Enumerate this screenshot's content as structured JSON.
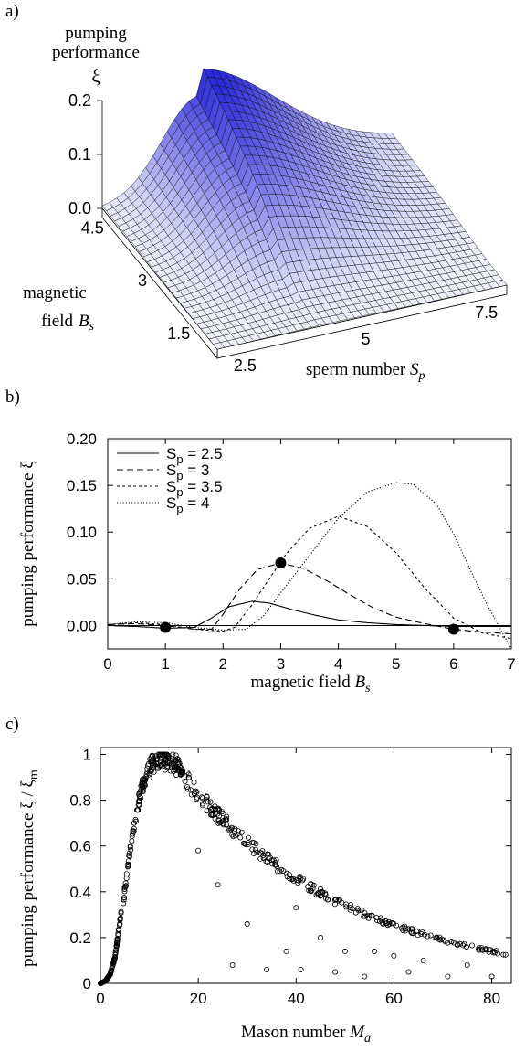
{
  "panel_labels": {
    "a": "a)",
    "b": "b)",
    "c": "c)"
  },
  "chart_data": [
    {
      "id": "a",
      "type": "surface",
      "zlabel_line1": "pumping",
      "zlabel_line2": "performance",
      "zlabel_symbol": "ξ",
      "zticks": [
        "0.0",
        "0.1",
        "0.2"
      ],
      "zlim": [
        0.0,
        0.2
      ],
      "xlabel": "sperm number",
      "xlabel_symbol": "S",
      "xlabel_sub": "p",
      "xticks": [
        "2.5",
        "5",
        "7.5"
      ],
      "ylabel_line1": "magnetic",
      "ylabel_line2": "field",
      "ylabel_symbol": "B",
      "ylabel_sub": "s",
      "yticks": [
        "1.5",
        "3",
        "4.5"
      ],
      "surface_peak": {
        "sperm_number": 4.0,
        "magnetic_field": 5.0,
        "xi": 0.2
      },
      "color": "#2b2bdc"
    },
    {
      "id": "b",
      "type": "line",
      "xlabel": "magnetic field",
      "xlabel_symbol": "B",
      "xlabel_sub": "s",
      "ylabel": "pumping performance  ξ",
      "xlim": [
        0,
        7
      ],
      "ylim": [
        -0.025,
        0.2
      ],
      "xticks": [
        "0",
        "1",
        "2",
        "3",
        "4",
        "5",
        "6",
        "7"
      ],
      "yticks": [
        "0.00",
        "0.05",
        "0.10",
        "0.15",
        "0.20"
      ],
      "legend_position": "top-left",
      "series": [
        {
          "name": "S",
          "sub": "p",
          "suffix": " = 2.5",
          "dash": "",
          "x": [
            0,
            0.5,
            1,
            1.5,
            1.8,
            2.1,
            2.5,
            2.8,
            3.2,
            3.6,
            4,
            4.5,
            5,
            5.5,
            6,
            6.5,
            7
          ],
          "y": [
            0.0,
            -0.001,
            -0.003,
            -0.002,
            0.008,
            0.02,
            0.026,
            0.024,
            0.017,
            0.011,
            0.006,
            0.003,
            0.001,
            0.0,
            -0.001,
            -0.001,
            -0.001
          ]
        },
        {
          "name": "S",
          "sub": "p",
          "suffix": " = 3",
          "dash": "7,4",
          "x": [
            0,
            0.5,
            1,
            1.5,
            1.8,
            2.0,
            2.3,
            2.6,
            3.0,
            3.4,
            3.8,
            4.2,
            4.6,
            5,
            5.5,
            6,
            6.5,
            7
          ],
          "y": [
            0.001,
            0.002,
            0.0,
            -0.004,
            -0.004,
            0.012,
            0.04,
            0.06,
            0.067,
            0.061,
            0.048,
            0.033,
            0.019,
            0.009,
            0.002,
            -0.004,
            -0.007,
            -0.009
          ]
        },
        {
          "name": "S",
          "sub": "p",
          "suffix": " = 3.5",
          "dash": "3,3",
          "x": [
            0,
            0.5,
            1,
            1.5,
            2,
            2.2,
            2.5,
            2.8,
            3.1,
            3.5,
            4,
            4.5,
            5,
            5.5,
            6,
            6.5,
            7
          ],
          "y": [
            0.001,
            0.003,
            0.001,
            -0.004,
            -0.006,
            -0.002,
            0.022,
            0.05,
            0.077,
            0.104,
            0.117,
            0.106,
            0.078,
            0.04,
            0.008,
            -0.008,
            -0.014
          ]
        },
        {
          "name": "S",
          "sub": "p",
          "suffix": " = 4",
          "dash": "1.2,2",
          "x": [
            0,
            0.5,
            1,
            1.5,
            2,
            2.4,
            2.7,
            3,
            3.5,
            4,
            4.5,
            5,
            5.3,
            5.7,
            6,
            6.3,
            6.6,
            7
          ],
          "y": [
            0.001,
            0.004,
            0.003,
            -0.002,
            -0.005,
            -0.004,
            0.01,
            0.035,
            0.075,
            0.115,
            0.143,
            0.153,
            0.151,
            0.13,
            0.098,
            0.058,
            0.02,
            -0.025
          ]
        }
      ],
      "markers": [
        {
          "x": 1,
          "y": -0.002
        },
        {
          "x": 3,
          "y": 0.067
        },
        {
          "x": 6,
          "y": -0.004
        }
      ]
    },
    {
      "id": "c",
      "type": "scatter",
      "xlabel": "Mason number",
      "xlabel_symbol": "M",
      "xlabel_sub": "a",
      "ylabel": "pumping performance  ξ / ξ",
      "ylabel_sub": "m",
      "xlim": [
        0,
        84
      ],
      "ylim": [
        0,
        1.03
      ],
      "xticks": [
        "0",
        "20",
        "40",
        "60",
        "80"
      ],
      "yticks": [
        "0",
        "0.2",
        "0.4",
        "0.6",
        "0.8",
        "1"
      ],
      "envelope": {
        "rise": [
          [
            0,
            0
          ],
          [
            1,
            0.01
          ],
          [
            2,
            0.04
          ],
          [
            3,
            0.12
          ],
          [
            4,
            0.28
          ],
          [
            5,
            0.42
          ],
          [
            6,
            0.58
          ],
          [
            7,
            0.72
          ],
          [
            8,
            0.83
          ],
          [
            9,
            0.91
          ],
          [
            10,
            0.96
          ],
          [
            11,
            0.99
          ],
          [
            12,
            1.0
          ],
          [
            14,
            1.0
          ],
          [
            16,
            0.97
          ],
          [
            18,
            0.9
          ]
        ],
        "decay_rate": 0.0295,
        "decay_start": 18
      },
      "outliers": [
        [
          20,
          0.58
        ],
        [
          24,
          0.43
        ],
        [
          27,
          0.08
        ],
        [
          30,
          0.26
        ],
        [
          34,
          0.06
        ],
        [
          38,
          0.14
        ],
        [
          40,
          0.33
        ],
        [
          41,
          0.06
        ],
        [
          45,
          0.2
        ],
        [
          48,
          0.05
        ],
        [
          50,
          0.14
        ],
        [
          54,
          0.03
        ],
        [
          56,
          0.14
        ],
        [
          60,
          0.12
        ],
        [
          63,
          0.05
        ],
        [
          66,
          0.1
        ],
        [
          71,
          0.03
        ],
        [
          75,
          0.08
        ],
        [
          80,
          0.03
        ]
      ]
    }
  ]
}
